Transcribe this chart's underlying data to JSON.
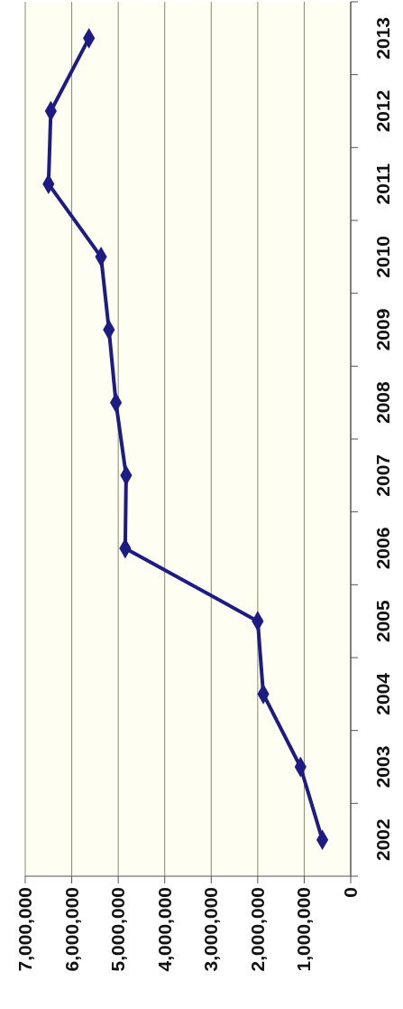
{
  "chart_data": {
    "type": "line",
    "orientation": "horizontal",
    "categories": [
      "2013",
      "2012",
      "2011",
      "2010",
      "2009",
      "2008",
      "2007",
      "2006",
      "2005",
      "2004",
      "2003",
      "2002"
    ],
    "series": [
      {
        "color": "#1c1c84",
        "values": [
          5630000,
          6450000,
          6500000,
          5370000,
          5200000,
          5050000,
          4830000,
          4850000,
          2000000,
          1880000,
          1080000,
          610000
        ]
      }
    ],
    "xlim": [
      7000000,
      0
    ],
    "xticks": [
      {
        "value": 7000000,
        "label": "7,000,000"
      },
      {
        "value": 6000000,
        "label": "6,000,000"
      },
      {
        "value": 5000000,
        "label": "5,000,000"
      },
      {
        "value": 4000000,
        "label": "4,000,000"
      },
      {
        "value": 3000000,
        "label": "3,000,000"
      },
      {
        "value": 2000000,
        "label": "2,000,000"
      },
      {
        "value": 1000000,
        "label": "1,000,000"
      },
      {
        "value": 0,
        "label": "0"
      }
    ],
    "grid": "x",
    "marker": "diamond",
    "line_style": "solid"
  }
}
